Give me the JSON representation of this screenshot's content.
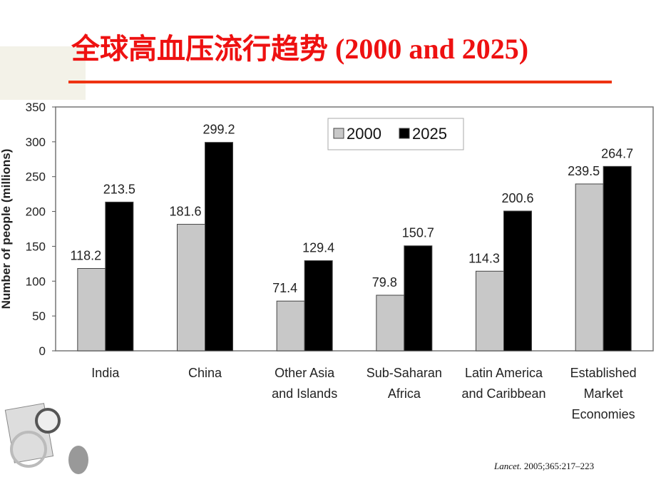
{
  "title": "全球高血压流行趋势 (2000 and 2025)",
  "citation": {
    "journal": "Lancet.",
    "ref": " 2005;365:217–223"
  },
  "chart_data": {
    "type": "bar",
    "ylabel": "Number of people (millions)",
    "ylim": [
      0,
      350
    ],
    "yticks": [
      0,
      50,
      100,
      150,
      200,
      250,
      300,
      350
    ],
    "grid": false,
    "legend_placement": "top-center",
    "categories": [
      [
        "India"
      ],
      [
        "China"
      ],
      [
        "Other Asia",
        "and Islands"
      ],
      [
        "Sub-Saharan",
        "Africa"
      ],
      [
        "Latin America",
        "and Caribbean"
      ],
      [
        "Established",
        "Market",
        "Economies"
      ]
    ],
    "series": [
      {
        "name": "2000",
        "color": "#c8c8c8",
        "values": [
          118.2,
          181.6,
          71.4,
          79.8,
          114.3,
          239.5
        ]
      },
      {
        "name": "2025",
        "color": "#000000",
        "values": [
          213.5,
          299.2,
          129.4,
          150.7,
          200.6,
          264.7
        ]
      }
    ]
  }
}
